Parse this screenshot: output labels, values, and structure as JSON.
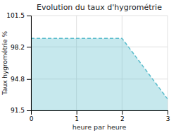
{
  "chart_data": {
    "type": "area",
    "title": "Evolution du taux d'hygrométrie",
    "x_label": "heure par heure",
    "y_label": "Taux hygrométrie %",
    "x": [
      0,
      2,
      3
    ],
    "values": [
      99.1,
      99.1,
      92.7
    ],
    "xlim": [
      0,
      3
    ],
    "ylim": [
      91.5,
      101.5
    ],
    "xticks": [
      0,
      1,
      2,
      3
    ],
    "yticks": [
      91.5,
      94.8,
      98.2,
      101.5
    ],
    "color": "#5bbccc",
    "line_style": "dashed",
    "grid": true
  }
}
